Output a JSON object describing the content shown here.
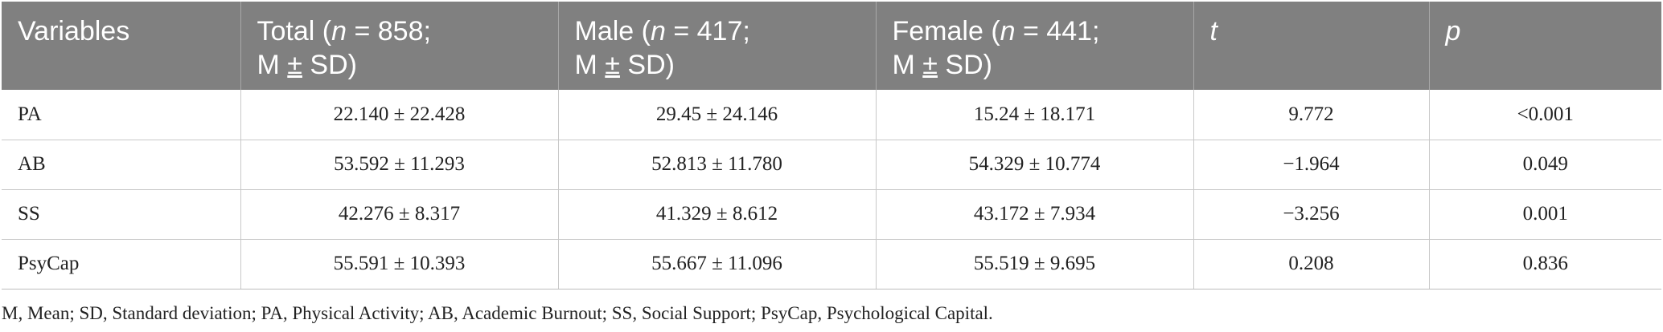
{
  "table": {
    "headers": [
      {
        "prefix": "Variables",
        "italic": "",
        "suffix": "",
        "line2": ""
      },
      {
        "prefix": "Total (",
        "italic": "n",
        "suffix": " = 858;",
        "line2_pre": "M ",
        "line2_pm": "±",
        "line2_post": " SD)"
      },
      {
        "prefix": "Male (",
        "italic": "n",
        "suffix": " = 417;",
        "line2_pre": "M ",
        "line2_pm": "±",
        "line2_post": " SD)"
      },
      {
        "prefix": "Female (",
        "italic": "n",
        "suffix": " = 441;",
        "line2_pre": "M ",
        "line2_pm": "±",
        "line2_post": " SD)"
      },
      {
        "prefix": "",
        "italic": "t",
        "suffix": ""
      },
      {
        "prefix": "",
        "italic": "p",
        "suffix": ""
      }
    ],
    "rows": [
      {
        "variable": "PA",
        "total": "22.140 ± 22.428",
        "male": "29.45 ± 24.146",
        "female": "15.24 ± 18.171",
        "t": "9.772",
        "p": "<0.001"
      },
      {
        "variable": "AB",
        "total": "53.592 ± 11.293",
        "male": "52.813 ± 11.780",
        "female": "54.329 ± 10.774",
        "t": "−1.964",
        "p": "0.049"
      },
      {
        "variable": "SS",
        "total": "42.276 ± 8.317",
        "male": "41.329 ± 8.612",
        "female": "43.172 ± 7.934",
        "t": "−3.256",
        "p": "0.001"
      },
      {
        "variable": "PsyCap",
        "total": "55.591 ± 10.393",
        "male": "55.667 ± 11.096",
        "female": "55.519 ± 9.695",
        "t": "0.208",
        "p": "0.836"
      }
    ]
  },
  "note": "M, Mean; SD, Standard deviation; PA, Physical Activity; AB, Academic Burnout; SS, Social Support; PsyCap, Psychological Capital."
}
